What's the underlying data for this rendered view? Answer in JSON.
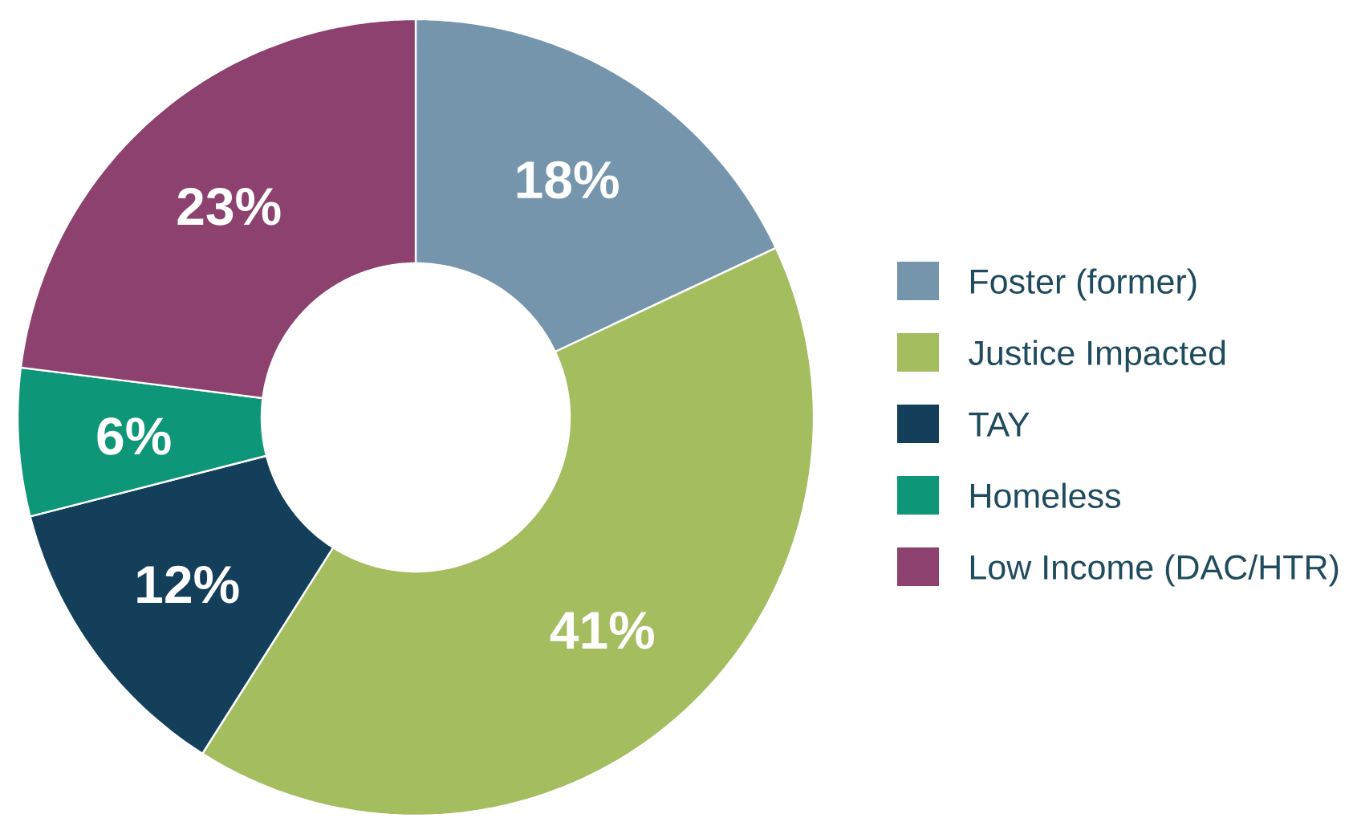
{
  "chart_data": {
    "type": "donut",
    "categories": [
      "Foster (former)",
      "Justice Impacted",
      "TAY",
      "Homeless",
      "Low Income (DAC/HTR)"
    ],
    "values": [
      18,
      41,
      12,
      6,
      23
    ],
    "colors": [
      "#7595ad",
      "#a3bd5f",
      "#143f5a",
      "#0e9679",
      "#8c416e"
    ],
    "value_labels": [
      "18%",
      "41%",
      "12%",
      "6%",
      "23%"
    ],
    "legend": "right"
  }
}
